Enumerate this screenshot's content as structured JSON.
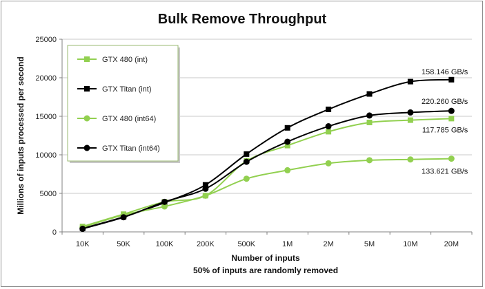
{
  "chart_data": {
    "type": "line",
    "title": "Bulk Remove Throughput",
    "xlabel": "Number of inputs",
    "xlabel_sub": "50% of inputs are randomly removed",
    "ylabel": "Millions of inputs processed per second",
    "categories": [
      "10K",
      "50K",
      "100K",
      "200K",
      "500K",
      "1M",
      "2M",
      "5M",
      "10M",
      "20M"
    ],
    "ylim": [
      0,
      25000
    ],
    "yticks": [
      0,
      5000,
      10000,
      15000,
      20000,
      25000
    ],
    "grid": "horizontal",
    "legend_position": "top-left",
    "series": [
      {
        "name": "GTX 480 (int)",
        "marker": "square",
        "color": "#92d050",
        "values": [
          700,
          2300,
          3900,
          4700,
          9200,
          11200,
          13000,
          14200,
          14500,
          14700
        ]
      },
      {
        "name": "GTX Titan (int)",
        "marker": "square",
        "color": "#000000",
        "values": [
          450,
          1950,
          3800,
          6100,
          10100,
          13500,
          15900,
          17900,
          19500,
          19750
        ]
      },
      {
        "name": "GTX 480 (int64)",
        "marker": "circle",
        "color": "#92d050",
        "values": [
          600,
          2200,
          3300,
          4700,
          6900,
          8000,
          8900,
          9300,
          9400,
          9500
        ]
      },
      {
        "name": "GTX Titan (int64)",
        "marker": "circle",
        "color": "#000000",
        "values": [
          400,
          1900,
          3900,
          5600,
          9100,
          11700,
          13700,
          15100,
          15500,
          15700
        ]
      }
    ],
    "annotations": [
      {
        "text": "158.146 GB/s",
        "x": "20M",
        "y": 19750
      },
      {
        "text": "220.260 GB/s",
        "x": "20M",
        "y": 15700
      },
      {
        "text": "117.785 GB/s",
        "x": "20M",
        "y": 14700
      },
      {
        "text": "133.621 GB/s",
        "x": "20M",
        "y": 9500
      }
    ]
  }
}
